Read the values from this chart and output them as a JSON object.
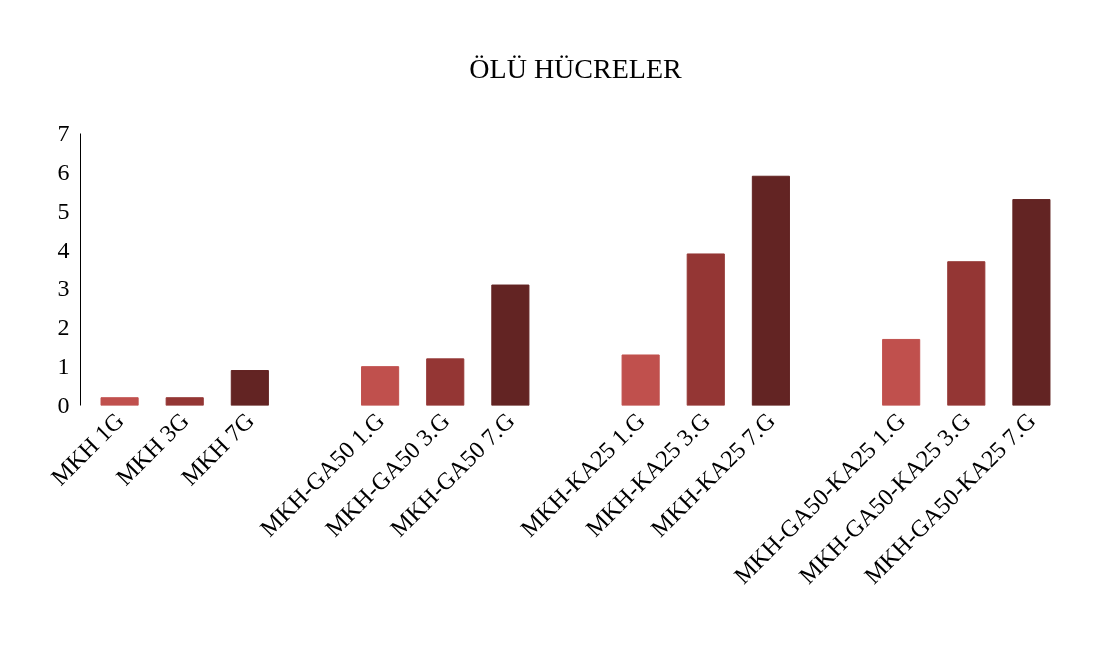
{
  "chart_data": {
    "type": "bar",
    "title": "ÖLÜ HÜCRELER",
    "categories": [
      "MKH 1G",
      "MKH 3G",
      "MKH 7G",
      null,
      "MKH-GA50 1.G",
      "MKH-GA50 3.G",
      "MKH-GA50 7.G",
      null,
      "MKH-KA25 1.G",
      "MKH-KA25 3.G",
      "MKH-KA25 7.G",
      null,
      "MKH-GA50-KA25 1.G",
      "MKH-GA50-KA25 3.G",
      "MKH-GA50-KA25 7.G"
    ],
    "values": [
      0.2,
      0.2,
      0.9,
      null,
      1.0,
      1.2,
      3.1,
      null,
      1.3,
      3.9,
      5.9,
      null,
      1.7,
      3.7,
      5.3
    ],
    "colors": [
      "#c0504d",
      "#943634",
      "#632423",
      null,
      "#c0504d",
      "#943634",
      "#632423",
      null,
      "#c0504d",
      "#943634",
      "#632423",
      null,
      "#c0504d",
      "#943634",
      "#632423"
    ],
    "ylim": [
      0,
      7
    ],
    "yticks": [
      0,
      1,
      2,
      3,
      4,
      5,
      6,
      7
    ],
    "grid": false
  }
}
